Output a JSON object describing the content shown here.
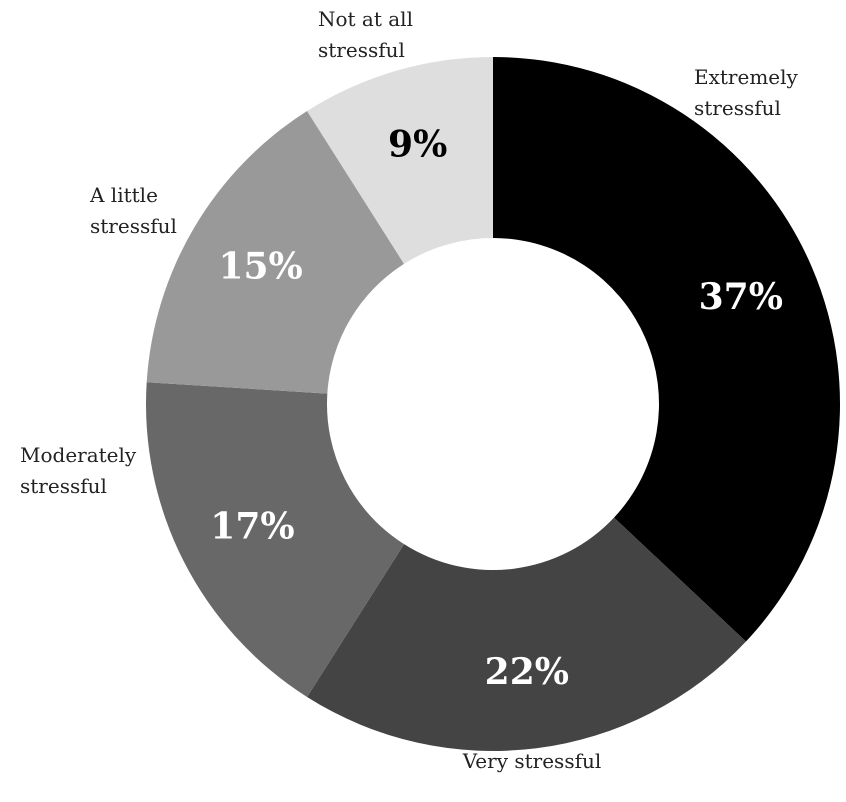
{
  "chart_data": {
    "type": "pie",
    "donut": true,
    "title": "",
    "legend": "none",
    "grid": false,
    "slices": [
      {
        "label": [
          "Extremely",
          "stressful"
        ],
        "value": 37,
        "value_label": "37%",
        "color": "#000000",
        "text_color": "#ffffff"
      },
      {
        "label": [
          "Very stressful"
        ],
        "value": 22,
        "value_label": "22%",
        "color": "#444444",
        "text_color": "#ffffff"
      },
      {
        "label": [
          "Moderately",
          "stressful"
        ],
        "value": 17,
        "value_label": "17%",
        "color": "#686868",
        "text_color": "#ffffff"
      },
      {
        "label": [
          "A little",
          "stressful"
        ],
        "value": 15,
        "value_label": "15%",
        "color": "#999999",
        "text_color": "#ffffff"
      },
      {
        "label": [
          "Not at all",
          "stressful"
        ],
        "value": 9,
        "value_label": "9%",
        "color": "#dedede",
        "text_color": "#000000"
      }
    ]
  }
}
